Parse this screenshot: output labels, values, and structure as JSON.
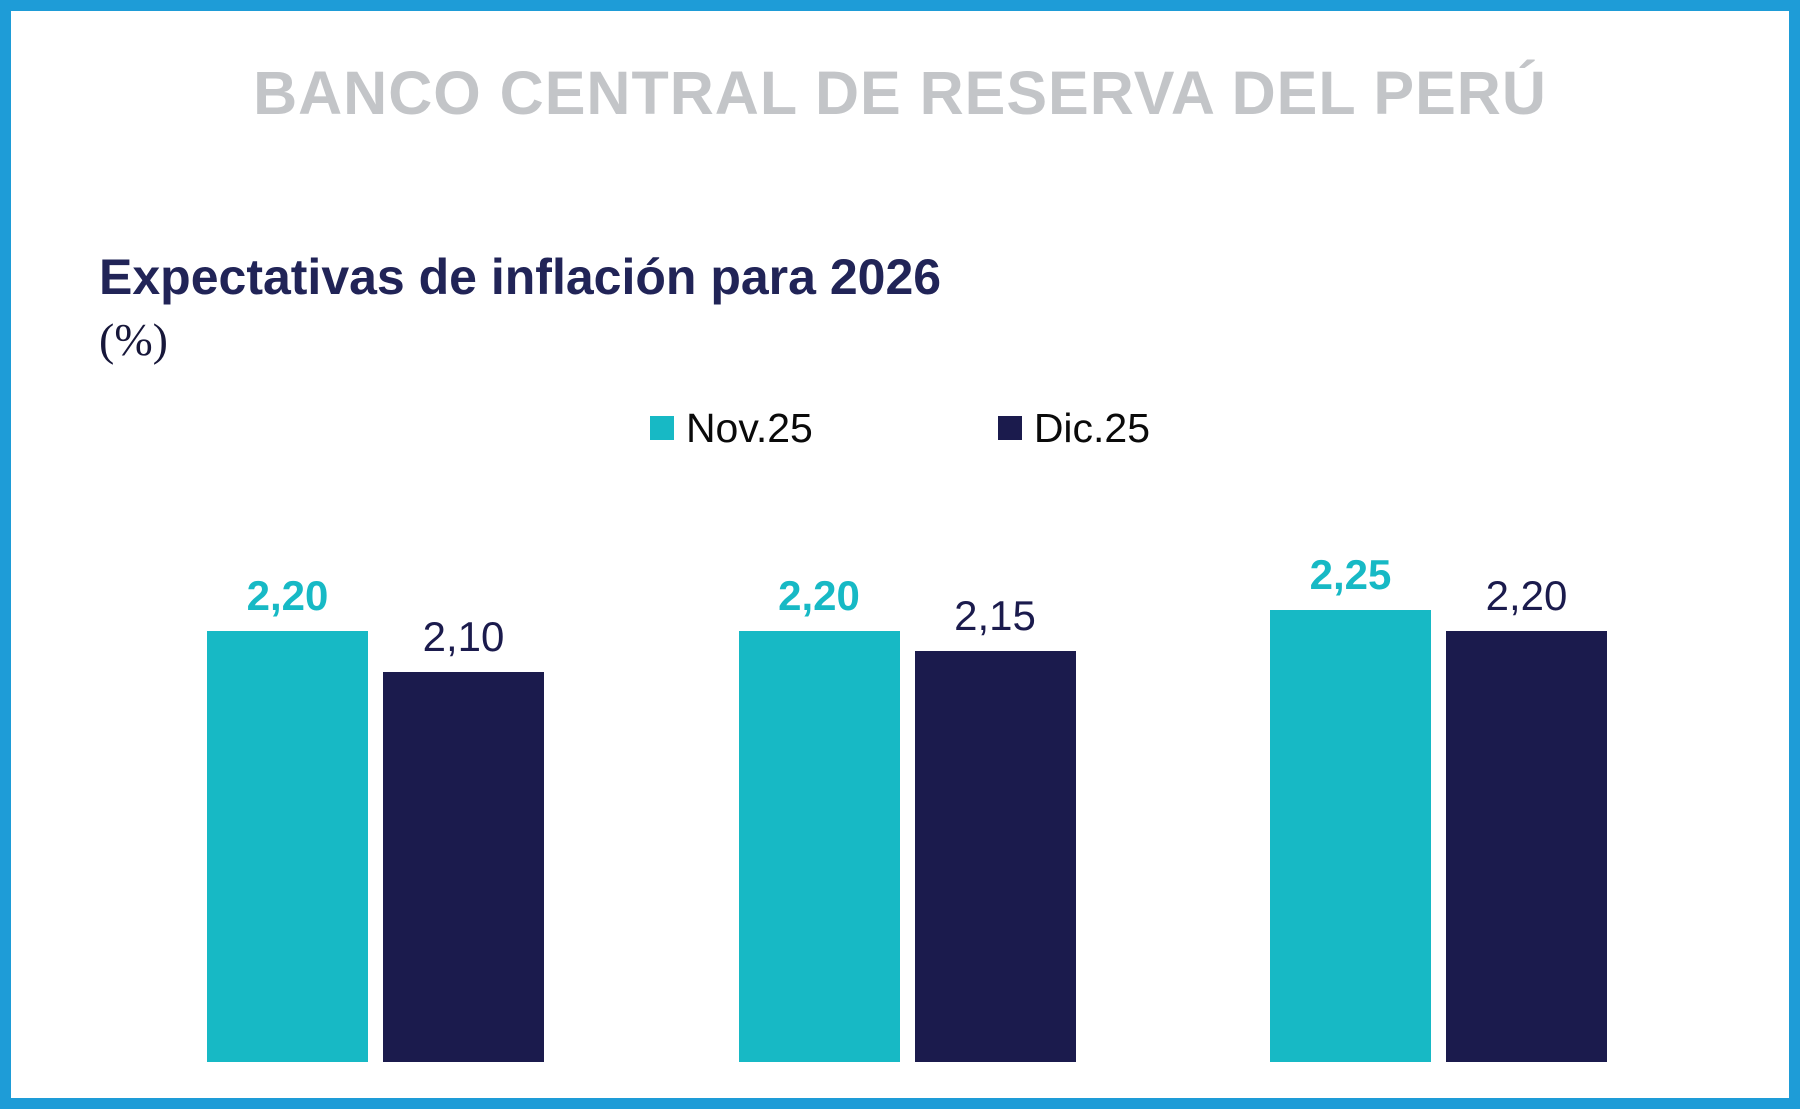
{
  "header": {
    "title": "BANCO CENTRAL DE RESERVA DEL PERÚ"
  },
  "chart_data": {
    "type": "bar",
    "title": "Expectativas de inflación para 2026",
    "subtitle": "(%)",
    "categories": [
      "",
      "",
      ""
    ],
    "series": [
      {
        "name": "Nov.25",
        "color": "#17b9c5",
        "values": [
          2.2,
          2.2,
          2.25
        ],
        "labels": [
          "2,20",
          "2,20",
          "2,25"
        ]
      },
      {
        "name": "Dic.25",
        "color": "#1b1b4d",
        "values": [
          2.1,
          2.15,
          2.2
        ],
        "labels": [
          "2,10",
          "2,15",
          "2,20"
        ]
      }
    ],
    "ylim": [
      1.15,
      2.35
    ],
    "grid": false,
    "legend_position": "top-center",
    "xlabel": "",
    "ylabel": ""
  },
  "colors": {
    "border": "#1e9cd7",
    "header_text": "#c3c5c8",
    "title_text": "#212457",
    "series_nov": "#17b9c5",
    "series_dic": "#1b1b4d"
  }
}
